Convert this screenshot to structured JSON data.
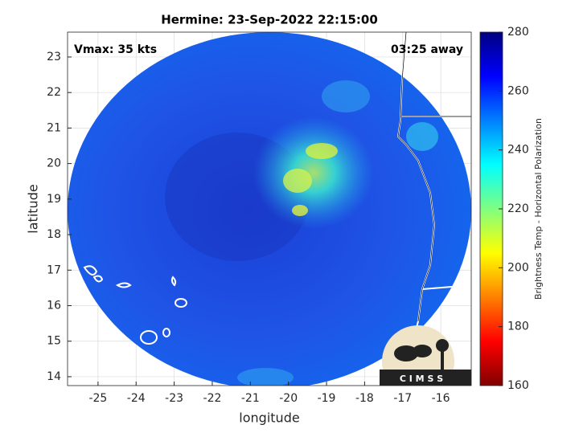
{
  "chart_data": {
    "type": "map",
    "title": "Hermine: 23-Sep-2022 22:15:00",
    "annotations": [
      "Vmax: 35 kts",
      "03:25 away"
    ],
    "xlabel": "longitude",
    "ylabel": "latitude",
    "xlim": [
      -25.8,
      -15.2
    ],
    "ylim": [
      13.75,
      23.7
    ],
    "xticks": [
      -25,
      -24,
      -23,
      -22,
      -21,
      -20,
      -19,
      -18,
      -17,
      -16
    ],
    "yticks": [
      14,
      15,
      16,
      17,
      18,
      19,
      20,
      21,
      22,
      23
    ],
    "grid": true,
    "colorbar": {
      "label": "Brightness Temp - Horizontal Polarization",
      "lim": [
        160,
        280
      ],
      "ticks": [
        160,
        180,
        200,
        220,
        240,
        260,
        280
      ],
      "colors": [
        "#800000",
        "#ff0000",
        "#ff8000",
        "#ffff00",
        "#80ff80",
        "#00ffff",
        "#0080ff",
        "#0000ff",
        "#000080"
      ]
    },
    "logo": "C I M S S"
  }
}
